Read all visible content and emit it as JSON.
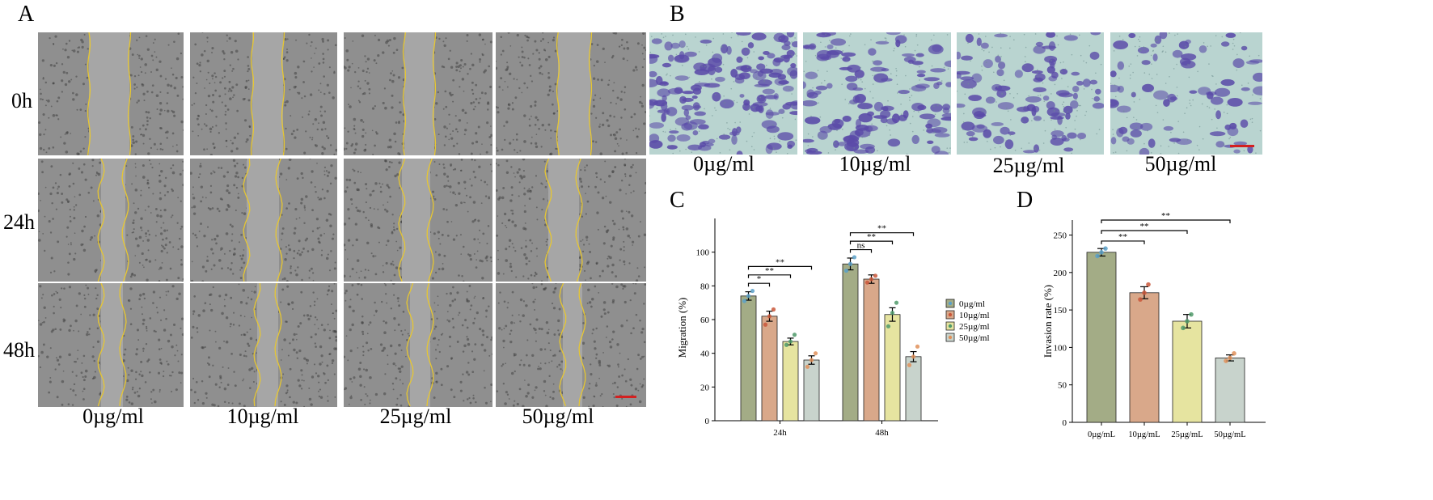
{
  "panel_letters": {
    "a": "A",
    "b": "B",
    "c": "C",
    "d": "D"
  },
  "panel_a": {
    "row_labels": [
      "0h",
      "24h",
      "48h"
    ],
    "col_labels": [
      "0µg/ml",
      "10µg/ml",
      "25µg/ml",
      "50µg/ml"
    ]
  },
  "panel_b": {
    "col_labels": [
      "0µg/ml",
      "10µg/ml",
      "25µg/ml",
      "50µg/ml"
    ]
  },
  "colors": {
    "s0": "#a3ac86",
    "s10": "#d9a88a",
    "s25": "#e6e4a0",
    "s50": "#c8d3cc",
    "dot0": "#5ba0c8",
    "dot10": "#c9573a",
    "dot25": "#4f9a6a",
    "dot50": "#e0905a",
    "scale_bar": "#d42020"
  },
  "chart_data": [
    {
      "type": "bar",
      "panel": "C",
      "categories": [
        "24h",
        "48h"
      ],
      "ylabel": "Migration (%)",
      "ylim": [
        0,
        120
      ],
      "yticks": [
        0,
        20,
        40,
        60,
        80,
        100
      ],
      "legend": {
        "placement": "right",
        "entries": [
          "0µg/ml",
          "10µg/ml",
          "25µg/ml",
          "50µg/ml"
        ]
      },
      "series": [
        {
          "name": "0µg/ml",
          "values": [
            74,
            93
          ],
          "errors": [
            2.5,
            3.5
          ],
          "points": [
            [
              71,
              74,
              77
            ],
            [
              89,
              93,
              97
            ]
          ]
        },
        {
          "name": "10µg/ml",
          "values": [
            62,
            84
          ],
          "errors": [
            3,
            2.5
          ],
          "points": [
            [
              57,
              62,
              66
            ],
            [
              82,
              84,
              86
            ]
          ]
        },
        {
          "name": "25µg/ml",
          "values": [
            47,
            63
          ],
          "errors": [
            2,
            4
          ],
          "points": [
            [
              45,
              47,
              51
            ],
            [
              56,
              64,
              70
            ]
          ]
        },
        {
          "name": "50µg/ml",
          "values": [
            36,
            38
          ],
          "errors": [
            2.5,
            3
          ],
          "points": [
            [
              32,
              36,
              40
            ],
            [
              33,
              38,
              44
            ]
          ]
        }
      ],
      "significance": [
        {
          "group": "24h",
          "from": 0,
          "to": 1,
          "label": "*"
        },
        {
          "group": "24h",
          "from": 0,
          "to": 2,
          "label": "**"
        },
        {
          "group": "24h",
          "from": 0,
          "to": 3,
          "label": "**"
        },
        {
          "group": "48h",
          "from": 0,
          "to": 1,
          "label": "ns"
        },
        {
          "group": "48h",
          "from": 0,
          "to": 2,
          "label": "**"
        },
        {
          "group": "48h",
          "from": 0,
          "to": 3,
          "label": "**"
        }
      ]
    },
    {
      "type": "bar",
      "panel": "D",
      "categories": [
        "0µg/mL",
        "10µg/mL",
        "25µg/mL",
        "50µg/mL"
      ],
      "ylabel": "Invasion rate (%)",
      "ylim": [
        0,
        270
      ],
      "yticks": [
        0,
        50,
        100,
        150,
        200,
        250
      ],
      "values": [
        227,
        173,
        135,
        86
      ],
      "errors": [
        5,
        8,
        9,
        4
      ],
      "points": [
        [
          222,
          227,
          232
        ],
        [
          164,
          173,
          184
        ],
        [
          126,
          135,
          144
        ],
        [
          82,
          86,
          92
        ]
      ],
      "significance": [
        {
          "from": 0,
          "to": 1,
          "label": "**"
        },
        {
          "from": 0,
          "to": 2,
          "label": "**"
        },
        {
          "from": 0,
          "to": 3,
          "label": "**"
        }
      ]
    }
  ]
}
